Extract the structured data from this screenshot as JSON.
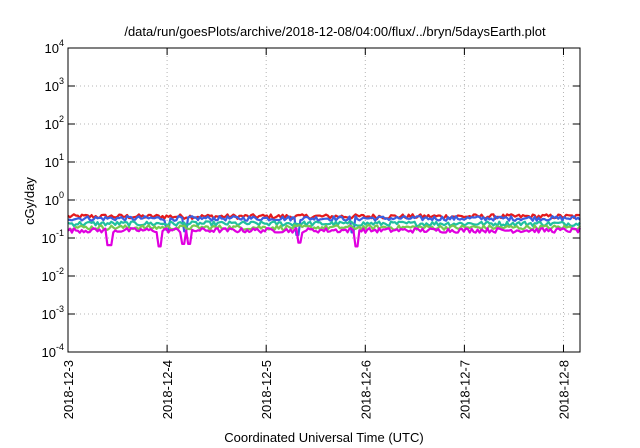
{
  "chart_data": {
    "type": "line",
    "title": "/data/run/goesPlots/archive/2018-12-08/04:00/flux/../bryn/5daysEarth.plot",
    "xlabel": "Coordinated Universal Time (UTC)",
    "ylabel": "cGy/day",
    "yscale": "log",
    "ylim": [
      0.0001,
      10000
    ],
    "xlim": [
      "2018-12-03 00:00",
      "2018-12-08 04:00"
    ],
    "y_ticks": [
      {
        "base": "10",
        "exp": "-4",
        "value": 0.0001
      },
      {
        "base": "10",
        "exp": "-3",
        "value": 0.001
      },
      {
        "base": "10",
        "exp": "-2",
        "value": 0.01
      },
      {
        "base": "10",
        "exp": "-1",
        "value": 0.1
      },
      {
        "base": "10",
        "exp": "0",
        "value": 1
      },
      {
        "base": "10",
        "exp": "1",
        "value": 10
      },
      {
        "base": "10",
        "exp": "2",
        "value": 100
      },
      {
        "base": "10",
        "exp": "3",
        "value": 1000
      },
      {
        "base": "10",
        "exp": "4",
        "value": 10000
      }
    ],
    "x_ticks": [
      "2018-12-3",
      "2018-12-4",
      "2018-12-5",
      "2018-12-6",
      "2018-12-7",
      "2018-12-8"
    ],
    "grid": true,
    "series": [
      {
        "color": "#e41a1c",
        "baseline": 0.37,
        "dips": []
      },
      {
        "color": "#3a5fe0",
        "baseline": 0.33,
        "dips": [
          {
            "x": "2018-12-04 00:08",
            "y": 0.16
          },
          {
            "x": "2018-12-04 04:30",
            "y": 0.15
          },
          {
            "x": "2018-12-05 07:40",
            "y": 0.12
          },
          {
            "x": "2018-12-05 21:00",
            "y": 0.14
          }
        ]
      },
      {
        "color": "#20c0a0",
        "baseline": 0.24,
        "dips": []
      },
      {
        "color": "#78c850",
        "baseline": 0.19,
        "dips": []
      },
      {
        "color": "#e000e0",
        "baseline": 0.16,
        "dips": [
          {
            "x": "2018-12-03 10:00",
            "y": 0.065
          },
          {
            "x": "2018-12-03 22:00",
            "y": 0.06
          },
          {
            "x": "2018-12-04 04:00",
            "y": 0.07
          },
          {
            "x": "2018-12-04 05:30",
            "y": 0.07
          },
          {
            "x": "2018-12-05 08:00",
            "y": 0.075
          },
          {
            "x": "2018-12-05 22:00",
            "y": 0.06
          }
        ]
      }
    ]
  }
}
